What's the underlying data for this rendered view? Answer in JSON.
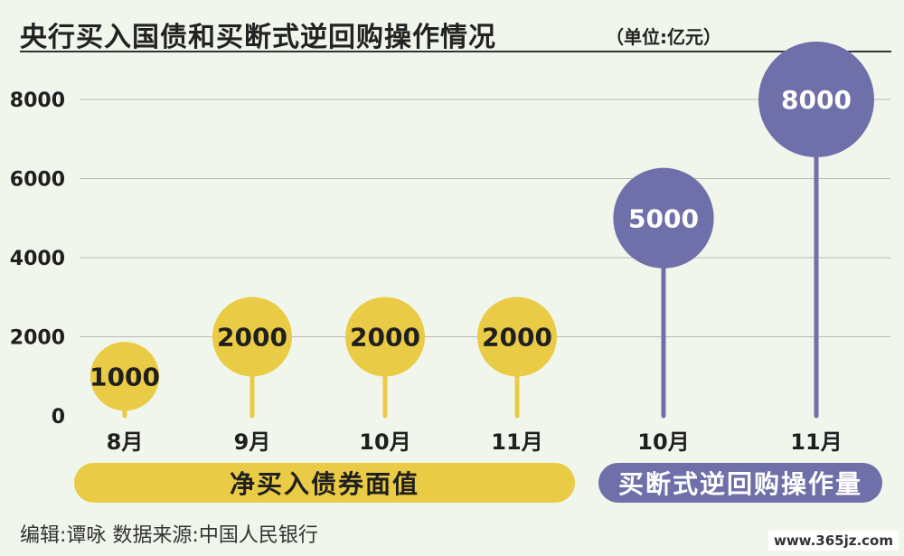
{
  "title": "央行买入国债和买断式逆回购操作情况",
  "unit": "（单位:亿元）",
  "footer": "编辑:谭咏   数据来源:中国人民银行",
  "watermark": "www.365jz.com",
  "colors": {
    "gold": "#eacb45",
    "purple": "#6f6fa9",
    "background": "#f1f6ec",
    "grid": "#b8b8b8"
  },
  "chart_data": {
    "type": "lollipop",
    "y_ticks": [
      0,
      2000,
      4000,
      6000,
      8000
    ],
    "ylim": [
      0,
      8000
    ],
    "groups": [
      {
        "label": "净买入债券面值",
        "color": "#eacb45",
        "categories": [
          "8月",
          "9月",
          "10月",
          "11月"
        ],
        "values": [
          1000,
          2000,
          2000,
          2000
        ]
      },
      {
        "label": "买断式逆回购操作量",
        "color": "#6f6fa9",
        "categories": [
          "10月",
          "11月"
        ],
        "values": [
          5000,
          8000
        ]
      }
    ]
  }
}
